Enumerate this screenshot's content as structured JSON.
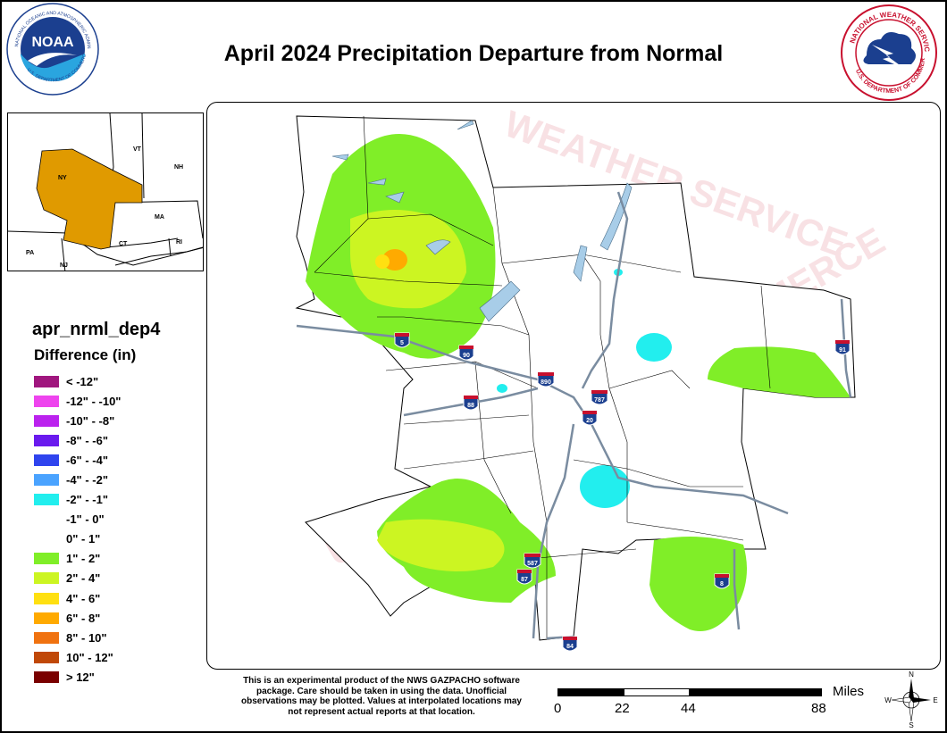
{
  "title": "April 2024 Precipitation Departure from Normal",
  "logos": {
    "noaa": {
      "text": "NOAA",
      "ring_text": "NATIONAL OCEANIC AND ATMOSPHERIC ADMINISTRATION · U.S. DEPARTMENT OF COMMERCE"
    },
    "nws": {
      "ring_text": "NATIONAL WEATHER SERVICE · U.S. DEPARTMENT OF COMMERCE"
    }
  },
  "inset": {
    "states": [
      "NY",
      "VT",
      "NH",
      "MA",
      "CT",
      "RI",
      "PA",
      "NJ"
    ],
    "highlight_color": "#e09a00"
  },
  "legend": {
    "variable": "apr_nrml_dep4",
    "heading": "Difference (in)",
    "items": [
      {
        "label": "< -12\"",
        "color": "#a0167e"
      },
      {
        "label": "-12\" - -10\"",
        "color": "#ee44ee"
      },
      {
        "label": "-10\" - -8\"",
        "color": "#bb22ee"
      },
      {
        "label": "-8\" - -6\"",
        "color": "#6a1aee"
      },
      {
        "label": "-6\" - -4\"",
        "color": "#2f44ee"
      },
      {
        "label": "-4\" - -2\"",
        "color": "#4aa3ff"
      },
      {
        "label": "-2\" - -1\"",
        "color": "#22eeee"
      },
      {
        "label": "-1\" - 0\"",
        "color": "#ffffff"
      },
      {
        "label": "0\" - 1\"",
        "color": "#ffffff"
      },
      {
        "label": "1\" - 2\"",
        "color": "#80ee28"
      },
      {
        "label": "2\" - 4\"",
        "color": "#ccf522"
      },
      {
        "label": "4\" - 6\"",
        "color": "#ffe011"
      },
      {
        "label": "6\" - 8\"",
        "color": "#ffaa00"
      },
      {
        "label": "8\" - 10\"",
        "color": "#f07210"
      },
      {
        "label": "10\" - 12\"",
        "color": "#c04808"
      },
      {
        "label": "> 12\"",
        "color": "#7a0000"
      }
    ]
  },
  "highways": [
    "5",
    "90",
    "890",
    "88",
    "787",
    "20",
    "91",
    "587",
    "87",
    "84",
    "8"
  ],
  "disclaimer": "This is an experimental product of the NWS GAZPACHO software package. Care should be taken in using the data. Unofficial observations may be plotted. Values at interpolated locations may not represent actual reports at that location.",
  "scale": {
    "unit": "Miles",
    "ticks": [
      "0",
      "22",
      "44",
      "88"
    ]
  },
  "compass": {
    "n": "N",
    "s": "S",
    "e": "E",
    "w": "W"
  },
  "watermark": {
    "top": "WEATHER SERVICE",
    "bottom": "U.S. DEPARTMENT OF COMMERCE"
  }
}
